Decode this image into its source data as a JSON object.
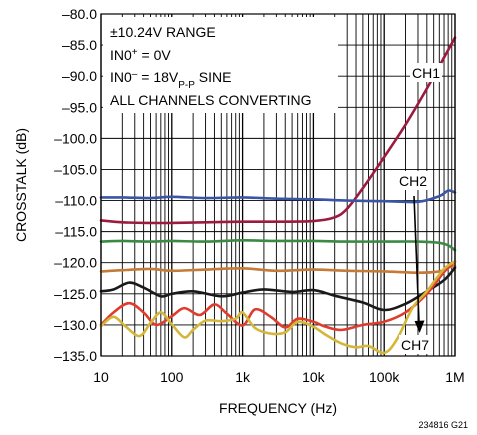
{
  "chart_data": {
    "type": "line",
    "xlabel": "FREQUENCY (Hz)",
    "ylabel": "CROSSTALK (dB)",
    "xscale": "log",
    "xlim": [
      10,
      1000000
    ],
    "ylim": [
      -135,
      -80
    ],
    "grid": true,
    "x_ticks": [
      {
        "value": 10,
        "label": "10"
      },
      {
        "value": 100,
        "label": "100"
      },
      {
        "value": 1000,
        "label": "1k"
      },
      {
        "value": 10000,
        "label": "10k"
      },
      {
        "value": 100000,
        "label": "100k"
      },
      {
        "value": 1000000,
        "label": "1M"
      }
    ],
    "y_ticks": [
      {
        "value": -80,
        "label": "–80.0"
      },
      {
        "value": -85,
        "label": "–85.0"
      },
      {
        "value": -90,
        "label": "–90.0"
      },
      {
        "value": -95,
        "label": "–95.0"
      },
      {
        "value": -100,
        "label": "–100.0"
      },
      {
        "value": -105,
        "label": "–105.0"
      },
      {
        "value": -110,
        "label": "–110.0"
      },
      {
        "value": -115,
        "label": "–115.0"
      },
      {
        "value": -120,
        "label": "–120.0"
      },
      {
        "value": -125,
        "label": "–125.0"
      },
      {
        "value": -130,
        "label": "–130.0"
      },
      {
        "value": -135,
        "label": "–135.0"
      }
    ],
    "conditions": {
      "range": "±10.24V RANGE",
      "in0p_label": "IN0",
      "in0p_sup": "+",
      "in0p_value": " = 0V",
      "in0m_label": "IN0",
      "in0m_sup": "–",
      "in0m_value": " = 18V",
      "in0m_sub": "P-P",
      "in0m_tail": " SINE",
      "all_channels": "ALL CHANNELS CONVERTING"
    },
    "labels": {
      "ch1": "CH1",
      "ch2": "CH2",
      "ch7": "CH7"
    },
    "figure_code": "234816 G21",
    "series": [
      {
        "name": "CH1",
        "color": "#9b1b3f",
        "x": [
          10,
          20,
          50,
          100,
          300,
          1000,
          3000,
          10000,
          20000,
          30000,
          50000,
          100000,
          200000,
          400000,
          700000,
          1000000
        ],
        "y": [
          -113.2,
          -113.5,
          -113.6,
          -113.6,
          -113.5,
          -113.4,
          -113.4,
          -113.3,
          -112.7,
          -111.3,
          -108.0,
          -103.0,
          -97.8,
          -92.0,
          -87.0,
          -83.8
        ]
      },
      {
        "name": "CH2",
        "color": "#3a55a4",
        "x": [
          10,
          20,
          50,
          100,
          300,
          1000,
          3000,
          10000,
          30000,
          100000,
          300000,
          600000,
          800000,
          1000000
        ],
        "y": [
          -109.5,
          -109.5,
          -109.6,
          -109.4,
          -109.6,
          -109.5,
          -109.7,
          -109.8,
          -110.0,
          -110.1,
          -110.2,
          -109.3,
          -108.4,
          -108.7
        ]
      },
      {
        "name": "",
        "color": "#3a8a44",
        "x": [
          10,
          20,
          50,
          100,
          300,
          1000,
          3000,
          10000,
          30000,
          100000,
          300000,
          600000,
          800000,
          1000000
        ],
        "y": [
          -116.6,
          -116.5,
          -116.6,
          -116.5,
          -116.6,
          -116.4,
          -116.5,
          -116.5,
          -116.6,
          -116.6,
          -116.6,
          -116.8,
          -117.2,
          -118.0
        ]
      },
      {
        "name": "",
        "color": "#c57a35",
        "x": [
          10,
          20,
          50,
          100,
          300,
          1000,
          3000,
          10000,
          30000,
          100000,
          300000,
          600000,
          800000,
          1000000
        ],
        "y": [
          -121.4,
          -121.2,
          -121.0,
          -121.3,
          -121.1,
          -120.9,
          -121.3,
          -121.1,
          -121.3,
          -121.4,
          -121.6,
          -121.4,
          -120.8,
          -120.5
        ]
      },
      {
        "name": "",
        "color": "#1a1a1a",
        "x": [
          10,
          15,
          25,
          40,
          70,
          100,
          200,
          500,
          1000,
          2000,
          5000,
          10000,
          20000,
          50000,
          100000,
          200000,
          400000,
          700000,
          1000000
        ],
        "y": [
          -124.6,
          -124.3,
          -123.2,
          -124.0,
          -125.4,
          -125.0,
          -124.6,
          -125.4,
          -124.8,
          -124.3,
          -124.7,
          -124.4,
          -125.3,
          -126.4,
          -127.6,
          -126.6,
          -124.6,
          -122.8,
          -120.8
        ]
      },
      {
        "name": "",
        "color": "#e03c2e",
        "x": [
          10,
          15,
          25,
          40,
          60,
          100,
          150,
          250,
          400,
          600,
          1000,
          1500,
          2500,
          4000,
          6000,
          10000,
          15000,
          25000,
          50000,
          100000,
          200000,
          400000,
          700000,
          1000000
        ],
        "y": [
          -130.0,
          -128.0,
          -126.5,
          -128.0,
          -130.0,
          -128.6,
          -127.3,
          -128.4,
          -126.7,
          -128.2,
          -130.1,
          -127.5,
          -128.7,
          -130.4,
          -129.0,
          -129.5,
          -130.3,
          -130.8,
          -130.0,
          -129.5,
          -128.0,
          -125.0,
          -121.5,
          -119.8
        ]
      },
      {
        "name": "CH7",
        "color": "#d4b63a",
        "x": [
          10,
          15,
          22,
          35,
          50,
          70,
          100,
          150,
          200,
          300,
          500,
          800,
          1000,
          1500,
          2500,
          4000,
          6000,
          10000,
          15000,
          25000,
          40000,
          60000,
          100000,
          150000,
          250000,
          400000,
          700000,
          1000000
        ],
        "y": [
          -130.2,
          -128.7,
          -130.2,
          -131.8,
          -129.7,
          -128.0,
          -129.9,
          -132.0,
          -130.8,
          -129.3,
          -129.4,
          -129.0,
          -128.0,
          -130.5,
          -131.4,
          -131.2,
          -129.5,
          -130.3,
          -131.6,
          -133.0,
          -133.6,
          -133.4,
          -134.5,
          -132.4,
          -127.3,
          -124.6,
          -121.0,
          -119.8
        ]
      }
    ]
  }
}
